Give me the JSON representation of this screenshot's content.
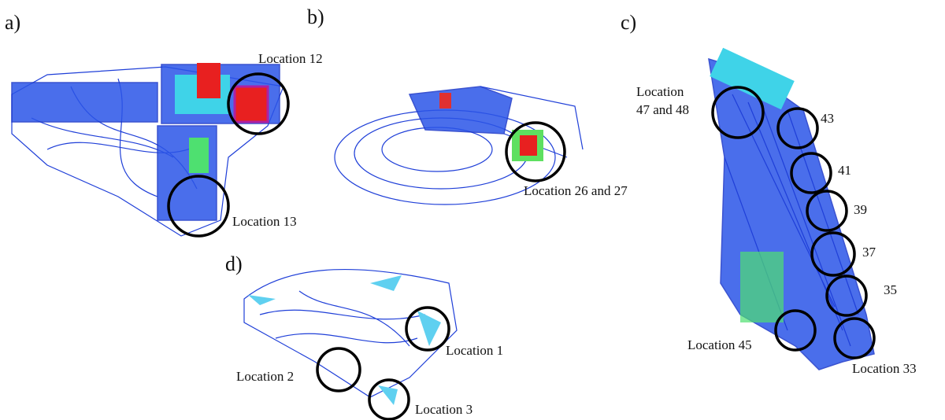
{
  "panels": [
    {
      "label": "a)",
      "locations": [
        "Location 12",
        "Location 13"
      ]
    },
    {
      "label": "b)",
      "locations": [
        "Location 26 and 27"
      ]
    },
    {
      "label": "c)",
      "locations": [
        [
          "Location",
          "47 and 48"
        ],
        "43",
        "41",
        "39",
        "37",
        "35",
        "Location 45",
        "Location 33"
      ]
    },
    {
      "label": "d)",
      "locations": [
        "Location 1",
        "Location 2",
        "Location 3"
      ]
    }
  ]
}
